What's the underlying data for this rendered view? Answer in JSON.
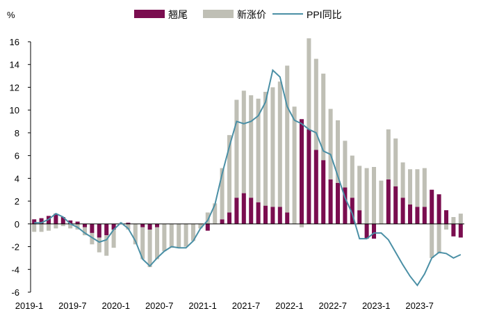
{
  "chart_data": {
    "type": "bar+line",
    "ylabel": "%",
    "ylim": [
      -6,
      16
    ],
    "yticks": [
      -6,
      -4,
      -2,
      0,
      2,
      4,
      6,
      8,
      10,
      12,
      14,
      16
    ],
    "xtick_labels": [
      "2019-1",
      "2019-7",
      "2020-1",
      "2020-7",
      "2021-1",
      "2021-7",
      "2022-1",
      "2022-7",
      "2023-1",
      "2023-7"
    ],
    "categories": [
      "2019-1",
      "2019-2",
      "2019-3",
      "2019-4",
      "2019-5",
      "2019-6",
      "2019-7",
      "2019-8",
      "2019-9",
      "2019-10",
      "2019-11",
      "2019-12",
      "2020-1",
      "2020-2",
      "2020-3",
      "2020-4",
      "2020-5",
      "2020-6",
      "2020-7",
      "2020-8",
      "2020-9",
      "2020-10",
      "2020-11",
      "2020-12",
      "2021-1",
      "2021-2",
      "2021-3",
      "2021-4",
      "2021-5",
      "2021-6",
      "2021-7",
      "2021-8",
      "2021-9",
      "2021-10",
      "2021-11",
      "2021-12",
      "2022-1",
      "2022-2",
      "2022-3",
      "2022-4",
      "2022-5",
      "2022-6",
      "2022-7",
      "2022-8",
      "2022-9",
      "2022-10",
      "2022-11",
      "2022-12",
      "2023-1",
      "2023-2",
      "2023-3",
      "2023-4",
      "2023-5",
      "2023-6",
      "2023-7",
      "2023-8",
      "2023-9",
      "2023-10",
      "2023-11",
      "2023-12"
    ],
    "series": [
      {
        "name": "翘尾",
        "kind": "bar",
        "color": "#7a0d4f",
        "values": [
          0.4,
          0.5,
          0.7,
          0.9,
          0.6,
          0.3,
          0.2,
          -0.3,
          -0.8,
          -1.2,
          -1.0,
          -0.5,
          0.0,
          0.1,
          0.0,
          -0.3,
          -0.5,
          -0.3,
          0.0,
          0.0,
          0.0,
          0.0,
          0.0,
          0.0,
          -0.6,
          0.0,
          0.4,
          1.0,
          2.3,
          2.7,
          2.3,
          1.9,
          1.6,
          1.5,
          1.5,
          1.0,
          0.0,
          9.2,
          8.3,
          6.5,
          5.6,
          3.9,
          3.6,
          3.2,
          2.3,
          1.2,
          -1.3,
          -1.3,
          0.0,
          3.9,
          3.3,
          2.3,
          1.7,
          1.5,
          1.5,
          3.0,
          2.6,
          1.2,
          -1.1,
          -1.2
        ]
      },
      {
        "name": "新涨价",
        "kind": "bar",
        "color": "#bfbfb5",
        "values": [
          -0.7,
          -0.7,
          -0.6,
          -0.4,
          -0.2,
          -0.4,
          -0.5,
          -0.7,
          -1.0,
          -1.3,
          -1.8,
          -1.6,
          0.1,
          -0.5,
          -1.8,
          -2.8,
          -3.3,
          -2.8,
          -2.4,
          -2.1,
          -2.1,
          -2.0,
          -1.5,
          -0.4,
          1.0,
          1.8,
          4.5,
          6.8,
          8.6,
          9.0,
          9.0,
          9.1,
          10.0,
          10.5,
          11.0,
          12.9,
          10.3,
          -0.3,
          8.0,
          8.0,
          7.6,
          6.2,
          5.5,
          4.1,
          3.7,
          3.9,
          4.9,
          5.0,
          3.8,
          4.4,
          4.2,
          3.1,
          3.1,
          3.3,
          3.4,
          -3.0,
          -2.6,
          -0.5,
          0.6,
          0.9
        ]
      },
      {
        "name": "PPI同比",
        "kind": "line",
        "color": "#4a8fa5",
        "values": [
          0.1,
          0.1,
          0.4,
          0.9,
          0.6,
          0.0,
          -0.3,
          -0.8,
          -1.2,
          -1.6,
          -1.4,
          -0.5,
          0.1,
          -0.4,
          -1.5,
          -3.1,
          -3.7,
          -3.0,
          -2.4,
          -2.0,
          -2.1,
          -2.1,
          -1.5,
          -0.4,
          0.3,
          1.7,
          4.4,
          6.8,
          9.0,
          8.8,
          9.0,
          9.5,
          10.7,
          13.5,
          12.9,
          10.3,
          9.1,
          8.8,
          8.3,
          8.0,
          6.4,
          6.1,
          4.2,
          2.3,
          0.9,
          -1.3,
          -1.3,
          -0.8,
          -0.8,
          -1.4,
          -2.5,
          -3.6,
          -4.6,
          -5.4,
          -4.4,
          -3.0,
          -2.5,
          -2.6,
          -3.0,
          -2.7
        ]
      }
    ]
  }
}
